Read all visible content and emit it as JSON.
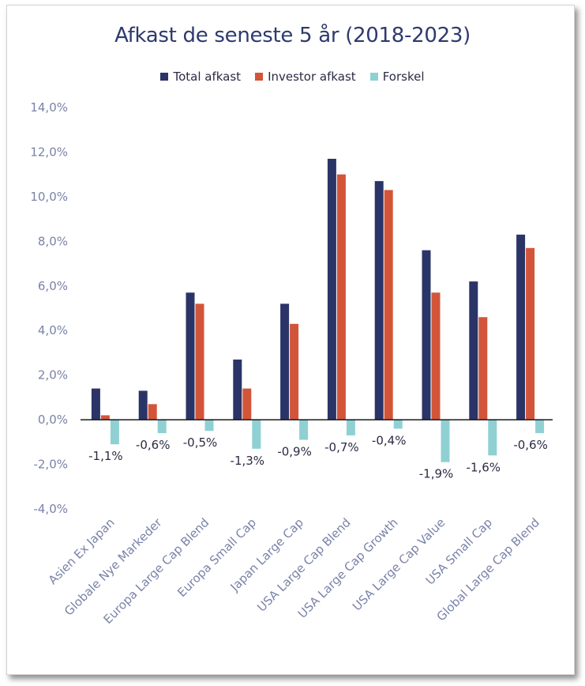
{
  "chart_data": {
    "type": "bar",
    "title": "Afkast de seneste 5 år (2018-2023)",
    "categories": [
      "Asien Ex Japan",
      "Globale Nye Markeder",
      "Europa Large Cap Blend",
      "Europa Small Cap",
      "Japan Large Cap",
      "USA Large Cap Blend",
      "USA Large Cap Growth",
      "USA Large Cap Value",
      "USA Small Cap",
      "Global Large Cap Blend"
    ],
    "series": [
      {
        "name": "Total afkast",
        "color": "#2b3467",
        "values": [
          1.4,
          1.3,
          5.7,
          2.7,
          5.2,
          11.7,
          10.7,
          7.6,
          6.2,
          8.3
        ]
      },
      {
        "name": "Investor afkast",
        "color": "#d2553a",
        "values": [
          0.2,
          0.7,
          5.2,
          1.4,
          4.3,
          11.0,
          10.3,
          5.7,
          4.6,
          7.7
        ]
      },
      {
        "name": "Forskel",
        "color": "#8fd0d3",
        "values": [
          -1.1,
          -0.6,
          -0.5,
          -1.3,
          -0.9,
          -0.7,
          -0.4,
          -1.9,
          -1.6,
          -0.6
        ]
      }
    ],
    "data_labels": [
      "-1,1%",
      "-0,6%",
      "-0,5%",
      "-1,3%",
      "-0,9%",
      "-0,7%",
      "-0,4%",
      "-1,9%",
      "-1,6%",
      "-0,6%"
    ],
    "yticks": [
      "14,0%",
      "12,0%",
      "10,0%",
      "8,0%",
      "6,0%",
      "4,0%",
      "2,0%",
      "0,0%",
      "-2,0%",
      "-4,0%"
    ],
    "ylim": [
      -4,
      14
    ],
    "grid": false,
    "legend_position": "top"
  }
}
